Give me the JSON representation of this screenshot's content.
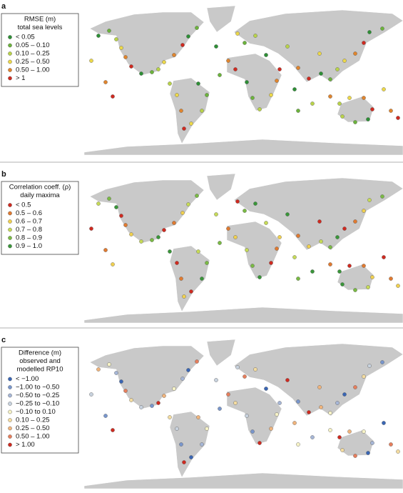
{
  "panels": [
    {
      "label": "a",
      "legend": {
        "title": [
          "RMSE (m)",
          "total sea levels"
        ],
        "items": [
          {
            "label": "< 0.05",
            "color": "#2e8f36"
          },
          {
            "label": "0.05 – 0.10",
            "color": "#6cb33c"
          },
          {
            "label": "0.10 – 0.25",
            "color": "#b9d34a"
          },
          {
            "label": "0.25 – 0.50",
            "color": "#ecd84a"
          },
          {
            "label": "0.50 – 1.00",
            "color": "#e0852e"
          },
          {
            "label": "> 1",
            "color": "#cf2a20"
          }
        ]
      }
    },
    {
      "label": "b",
      "legend": {
        "title": [
          "Correlation coeff. (ρ)",
          "daily maxima"
        ],
        "items": [
          {
            "label": "< 0.5",
            "color": "#cf2a20"
          },
          {
            "label": "0.5 – 0.6",
            "color": "#e07a30"
          },
          {
            "label": "0.6 – 0.7",
            "color": "#f0d050"
          },
          {
            "label": "0.7 – 0.8",
            "color": "#c6da58"
          },
          {
            "label": "0.8 – 0.9",
            "color": "#7aba44"
          },
          {
            "label": "0.9 – 1.0",
            "color": "#3a963a"
          }
        ]
      }
    },
    {
      "label": "c",
      "legend": {
        "title": [
          "Difference (m)",
          "observed and",
          "modelled RP10"
        ],
        "items": [
          {
            "label": "< −1.00",
            "color": "#3a66b4"
          },
          {
            "label": "−1.00 to −0.50",
            "color": "#7896cc"
          },
          {
            "label": "−0.50 to −0.25",
            "color": "#a6b6d6"
          },
          {
            "label": "−0.25 to −0.10",
            "color": "#c8d2de"
          },
          {
            "label": "−0.10 to  0.10",
            "color": "#f6f2c6"
          },
          {
            "label": "0.10 –  0.25",
            "color": "#f4dca0"
          },
          {
            "label": "0.25 – 0.50",
            "color": "#f0b47c"
          },
          {
            "label": "0.50 – 1.00",
            "color": "#e67e5c"
          },
          {
            "label": "> 1.00",
            "color": "#cf2a20"
          }
        ]
      }
    }
  ]
}
